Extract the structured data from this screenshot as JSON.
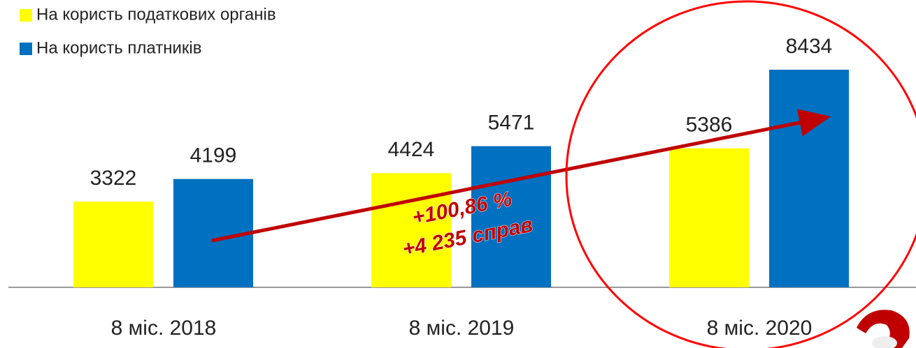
{
  "chart_data": {
    "type": "bar",
    "categories": [
      "8 міс. 2018",
      "8 міс. 2019",
      "8 міс. 2020"
    ],
    "series": [
      {
        "name": "На користь податкових органів",
        "color": "#ffff00",
        "values": [
          3322,
          4424,
          5386
        ]
      },
      {
        "name": "На користь платників",
        "color": "#0070c0",
        "values": [
          4199,
          5471,
          8434
        ]
      }
    ],
    "ylim": [
      0,
      9000
    ],
    "annotations": [
      "+100,86 %",
      "+4 235 справ"
    ]
  }
}
